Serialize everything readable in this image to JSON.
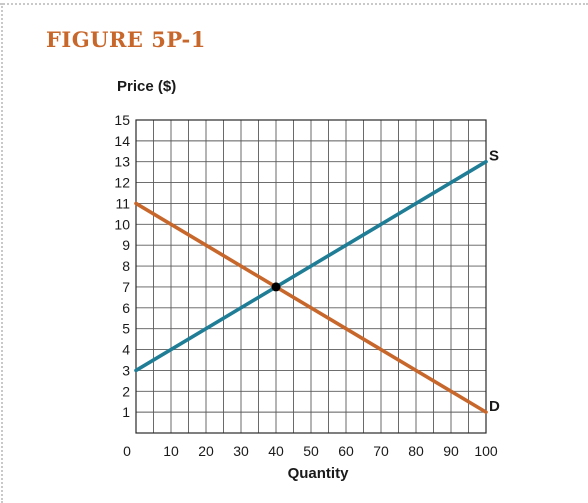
{
  "figure": {
    "title": "FIGURE 5P-1"
  },
  "chart_data": {
    "type": "line",
    "xlabel": "Quantity",
    "ylabel": "Price ($)",
    "xlim": [
      0,
      100
    ],
    "ylim": [
      0,
      15
    ],
    "x_ticks": [
      0,
      10,
      20,
      30,
      40,
      50,
      60,
      70,
      80,
      90,
      100
    ],
    "y_ticks": [
      1,
      2,
      3,
      4,
      5,
      6,
      7,
      8,
      9,
      10,
      11,
      12,
      13,
      14,
      15
    ],
    "grid": true,
    "series": [
      {
        "name": "S",
        "color": "#1f7d96",
        "x": [
          0,
          100
        ],
        "y": [
          3,
          13
        ]
      },
      {
        "name": "D",
        "color": "#c8672b",
        "x": [
          0,
          100
        ],
        "y": [
          11,
          1
        ]
      }
    ],
    "points": [
      {
        "x": 40,
        "y": 7,
        "color": "#000000"
      }
    ]
  }
}
